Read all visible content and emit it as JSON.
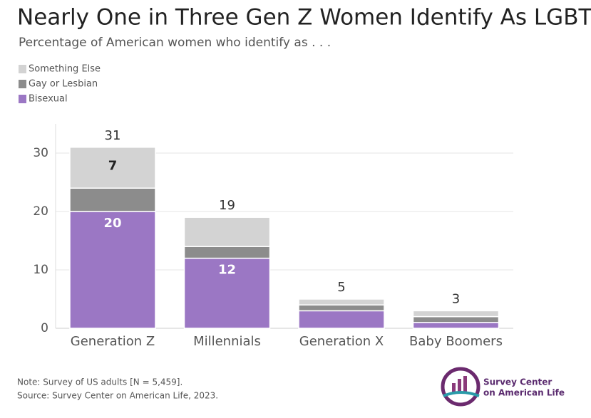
{
  "chart_data": {
    "type": "stacked_bar",
    "title": "Nearly One in Three Gen Z Women Identify As LGBT",
    "subtitle": "Percentage of American women who identify as . . .",
    "categories": [
      "Generation Z",
      "Millennials",
      "Generation X",
      "Baby Boomers"
    ],
    "series": [
      {
        "name": "Bisexual",
        "color": "#9b77c4",
        "values": [
          20,
          12,
          3,
          1
        ]
      },
      {
        "name": "Gay or Lesbian",
        "color": "#8c8c8c",
        "values": [
          4,
          2,
          1,
          1
        ]
      },
      {
        "name": "Something Else",
        "color": "#d3d3d3",
        "values": [
          7,
          5,
          1,
          1
        ]
      }
    ],
    "totals": [
      31,
      19,
      5,
      3
    ],
    "ylim": [
      0,
      35
    ],
    "yticks": [
      0,
      10,
      20,
      30
    ],
    "grid": true,
    "legend": "top-left",
    "notes": [
      "Note: Survey of US adults [N = 5,459].",
      "Source: Survey Center on American Life, 2023."
    ],
    "logo": [
      "Survey Center",
      "on American Life"
    ]
  }
}
